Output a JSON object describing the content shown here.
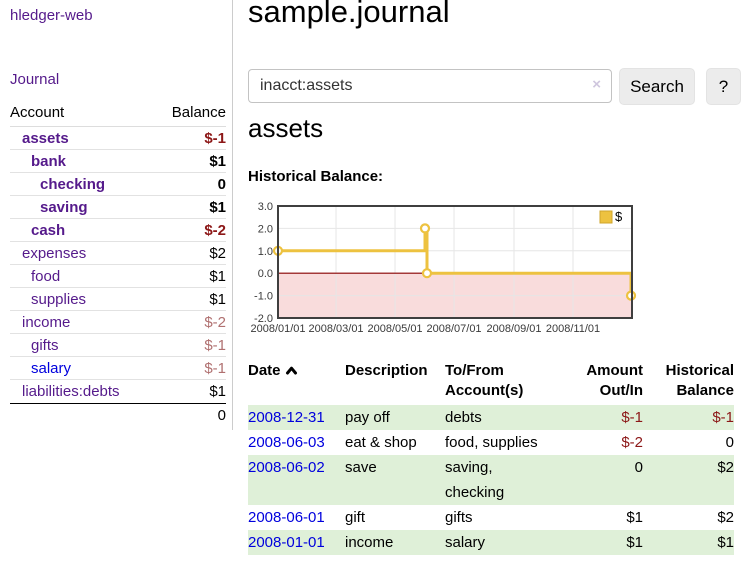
{
  "colors": {
    "link_purple": "#551a8b",
    "link_blue": "#0000dd",
    "negative_red": "#8c1717",
    "negative_muted": "#b07070",
    "row_green": "#dff0d8",
    "series_yellow": "#edc240",
    "negative_region_pink": "#f9dcdc",
    "zero_line_red": "#8b0000"
  },
  "sidebar": {
    "brand": "hledger-web",
    "journal_link": "Journal",
    "account_col": "Account",
    "balance_col": "Balance",
    "accounts": [
      {
        "name": "assets",
        "balance": "$-1",
        "indent": 1,
        "emph": true,
        "balance_style": "neg"
      },
      {
        "name": "bank",
        "balance": "$1",
        "indent": 2,
        "emph": true,
        "balance_style": ""
      },
      {
        "name": "checking",
        "balance": "0",
        "indent": 3,
        "emph": true,
        "balance_style": ""
      },
      {
        "name": "saving",
        "balance": "$1",
        "indent": 3,
        "emph": true,
        "balance_style": ""
      },
      {
        "name": "cash",
        "balance": "$-2",
        "indent": 2,
        "emph": true,
        "balance_style": "neg"
      },
      {
        "name": "expenses",
        "balance": "$2",
        "indent": 1,
        "emph": false,
        "balance_style": ""
      },
      {
        "name": "food",
        "balance": "$1",
        "indent": 2,
        "emph": false,
        "balance_style": ""
      },
      {
        "name": "supplies",
        "balance": "$1",
        "indent": 2,
        "emph": false,
        "balance_style": ""
      },
      {
        "name": "income",
        "balance": "$-2",
        "indent": 1,
        "emph": false,
        "balance_style": "negmuted"
      },
      {
        "name": "gifts",
        "balance": "$-1",
        "indent": 2,
        "emph": false,
        "balance_style": "negmuted"
      },
      {
        "name": "salary",
        "balance": "$-1",
        "indent": 2,
        "emph": false,
        "balance_style": "negmuted",
        "blue_link": true
      },
      {
        "name": "liabilities:debts",
        "balance": "$1",
        "indent": 1,
        "emph": false,
        "balance_style": ""
      }
    ],
    "total": "0"
  },
  "main": {
    "title": "sample.journal",
    "search": {
      "value": "inacct:assets",
      "clear_icon": "×",
      "search_button": "Search",
      "help_button": "?"
    },
    "account_heading": "assets",
    "chart_label": "Historical Balance:"
  },
  "chart_data": {
    "type": "line",
    "step": true,
    "title": "Historical Balance",
    "series": [
      {
        "name": "$",
        "color": "#edc240",
        "points": [
          {
            "date": "2008-01-01",
            "value": 1
          },
          {
            "date": "2008-06-01",
            "value": 2
          },
          {
            "date": "2008-06-03",
            "value": 0
          },
          {
            "date": "2008-12-31",
            "value": -1
          }
        ]
      }
    ],
    "x_ticks": [
      "2008/01/01",
      "2008/03/01",
      "2008/05/01",
      "2008/07/01",
      "2008/09/01",
      "2008/11/01"
    ],
    "y_ticks": [
      3.0,
      2.0,
      1.0,
      0.0,
      -1.0,
      -2.0
    ],
    "xlim": [
      "2008-01-01",
      "2009-01-01"
    ],
    "ylim": [
      -2,
      3
    ],
    "grid": true,
    "legend": {
      "label": "$",
      "position": "top-right"
    },
    "negative_region": {
      "from": 0,
      "to": -2
    }
  },
  "register": {
    "columns": [
      "Date",
      "Description",
      "To/From Account(s)",
      "Amount Out/In",
      "Historical Balance"
    ],
    "sort": {
      "column": "Date",
      "direction": "ascending"
    },
    "rows": [
      {
        "date": "2008-12-31",
        "description": "pay off",
        "accounts": "debts",
        "amount": "$-1",
        "balance": "$-1",
        "amount_neg": true,
        "balance_neg": true
      },
      {
        "date": "2008-06-03",
        "description": "eat & shop",
        "accounts": "food, supplies",
        "amount": "$-2",
        "balance": "0",
        "amount_neg": true,
        "balance_neg": false
      },
      {
        "date": "2008-06-02",
        "description": "save",
        "accounts": "saving, checking",
        "amount": "0",
        "balance": "$2",
        "amount_neg": false,
        "balance_neg": false
      },
      {
        "date": "2008-06-01",
        "description": "gift",
        "accounts": "gifts",
        "amount": "$1",
        "balance": "$2",
        "amount_neg": false,
        "balance_neg": false
      },
      {
        "date": "2008-01-01",
        "description": "income",
        "accounts": "salary",
        "amount": "$1",
        "balance": "$1",
        "amount_neg": false,
        "balance_neg": false
      }
    ]
  }
}
